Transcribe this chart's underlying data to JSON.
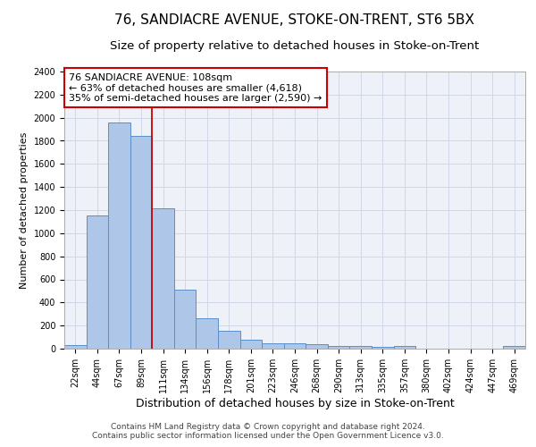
{
  "title1": "76, SANDIACRE AVENUE, STOKE-ON-TRENT, ST6 5BX",
  "title2": "Size of property relative to detached houses in Stoke-on-Trent",
  "xlabel": "Distribution of detached houses by size in Stoke-on-Trent",
  "ylabel": "Number of detached properties",
  "bar_labels": [
    "22sqm",
    "44sqm",
    "67sqm",
    "89sqm",
    "111sqm",
    "134sqm",
    "156sqm",
    "178sqm",
    "201sqm",
    "223sqm",
    "246sqm",
    "268sqm",
    "290sqm",
    "313sqm",
    "335sqm",
    "357sqm",
    "380sqm",
    "402sqm",
    "424sqm",
    "447sqm",
    "469sqm"
  ],
  "bar_values": [
    30,
    1150,
    1960,
    1840,
    1215,
    510,
    265,
    155,
    80,
    50,
    45,
    40,
    20,
    20,
    15,
    20,
    0,
    0,
    0,
    0,
    20
  ],
  "bar_color": "#aec6e8",
  "bar_edge_color": "#5b8fc9",
  "property_line_x": 3.5,
  "annotation_text1": "76 SANDIACRE AVENUE: 108sqm",
  "annotation_text2": "← 63% of detached houses are smaller (4,618)",
  "annotation_text3": "35% of semi-detached houses are larger (2,590) →",
  "annotation_box_color": "#ffffff",
  "annotation_box_edge_color": "#cc0000",
  "property_line_color": "#cc0000",
  "grid_color": "#d0d8e8",
  "background_color": "#eef2f8",
  "ylim": [
    0,
    2400
  ],
  "yticks": [
    0,
    200,
    400,
    600,
    800,
    1000,
    1200,
    1400,
    1600,
    1800,
    2000,
    2200,
    2400
  ],
  "footer1": "Contains HM Land Registry data © Crown copyright and database right 2024.",
  "footer2": "Contains public sector information licensed under the Open Government Licence v3.0.",
  "title1_fontsize": 11,
  "title2_fontsize": 9.5,
  "xlabel_fontsize": 9,
  "ylabel_fontsize": 8,
  "tick_fontsize": 7,
  "annotation_fontsize": 8,
  "footer_fontsize": 6.5
}
